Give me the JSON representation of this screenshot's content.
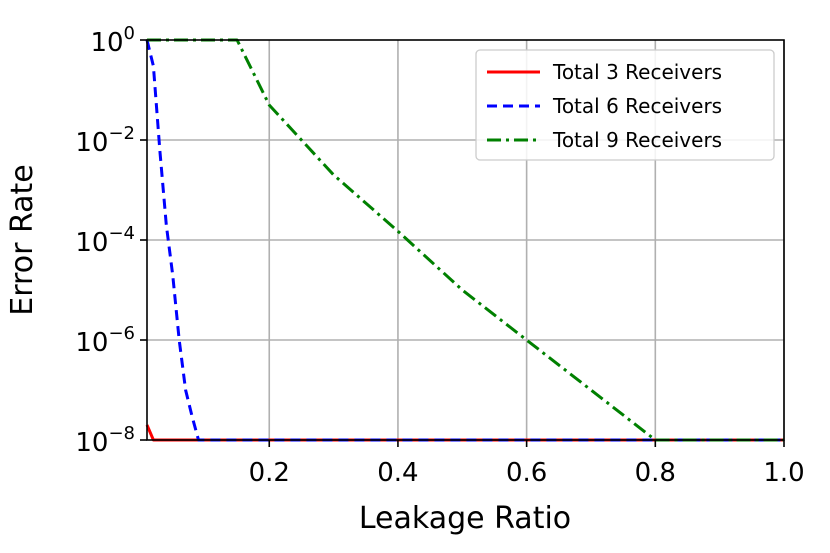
{
  "chart_data": {
    "type": "line",
    "xlabel": "Leakage Ratio",
    "ylabel": "Error Rate",
    "xlim": [
      0.01,
      1.0
    ],
    "ylim_exponent": [
      -8,
      0
    ],
    "yscale": "log",
    "grid": true,
    "legend_position": "top-right",
    "x_ticks": [
      0.2,
      0.4,
      0.6,
      0.8,
      1.0
    ],
    "x_tick_labels": [
      "0.2",
      "0.4",
      "0.6",
      "0.8",
      "1.0"
    ],
    "y_tick_exponents": [
      0,
      -2,
      -4,
      -6,
      -8
    ],
    "y_tick_labels": [
      {
        "base": "10",
        "exp": "0"
      },
      {
        "base": "10",
        "exp": "−2"
      },
      {
        "base": "10",
        "exp": "−4"
      },
      {
        "base": "10",
        "exp": "−6"
      },
      {
        "base": "10",
        "exp": "−8"
      }
    ],
    "series": [
      {
        "name": "Total 3 Receivers",
        "color": "#ff0000",
        "style": "solid",
        "points": [
          {
            "x": 0.01,
            "y": 2e-08
          },
          {
            "x": 0.02,
            "y": 1e-08
          },
          {
            "x": 0.1,
            "y": 1e-08
          },
          {
            "x": 0.2,
            "y": 1e-08
          },
          {
            "x": 0.4,
            "y": 1e-08
          },
          {
            "x": 0.6,
            "y": 1e-08
          },
          {
            "x": 0.8,
            "y": 1e-08
          },
          {
            "x": 1.0,
            "y": 1e-08
          }
        ]
      },
      {
        "name": "Total 6 Receivers",
        "color": "#0000ff",
        "style": "dashed",
        "points": [
          {
            "x": 0.01,
            "y": 1.0
          },
          {
            "x": 0.02,
            "y": 0.3
          },
          {
            "x": 0.03,
            "y": 0.006
          },
          {
            "x": 0.04,
            "y": 0.0002
          },
          {
            "x": 0.05,
            "y": 2e-05
          },
          {
            "x": 0.06,
            "y": 1e-06
          },
          {
            "x": 0.07,
            "y": 1e-07
          },
          {
            "x": 0.08,
            "y": 3e-08
          },
          {
            "x": 0.09,
            "y": 1e-08
          },
          {
            "x": 0.1,
            "y": 1e-08
          },
          {
            "x": 0.4,
            "y": 1e-08
          },
          {
            "x": 0.8,
            "y": 1e-08
          },
          {
            "x": 1.0,
            "y": 1e-08
          }
        ]
      },
      {
        "name": "Total 9 Receivers",
        "color": "#008000",
        "style": "dashdot",
        "points": [
          {
            "x": 0.01,
            "y": 1.0
          },
          {
            "x": 0.1,
            "y": 1.0
          },
          {
            "x": 0.15,
            "y": 1.0
          },
          {
            "x": 0.2,
            "y": 0.05
          },
          {
            "x": 0.3,
            "y": 0.002
          },
          {
            "x": 0.4,
            "y": 0.00015
          },
          {
            "x": 0.5,
            "y": 1e-05
          },
          {
            "x": 0.6,
            "y": 1e-06
          },
          {
            "x": 0.7,
            "y": 1e-07
          },
          {
            "x": 0.8,
            "y": 1e-08
          },
          {
            "x": 0.9,
            "y": 1e-08
          },
          {
            "x": 1.0,
            "y": 1e-08
          }
        ]
      }
    ]
  }
}
